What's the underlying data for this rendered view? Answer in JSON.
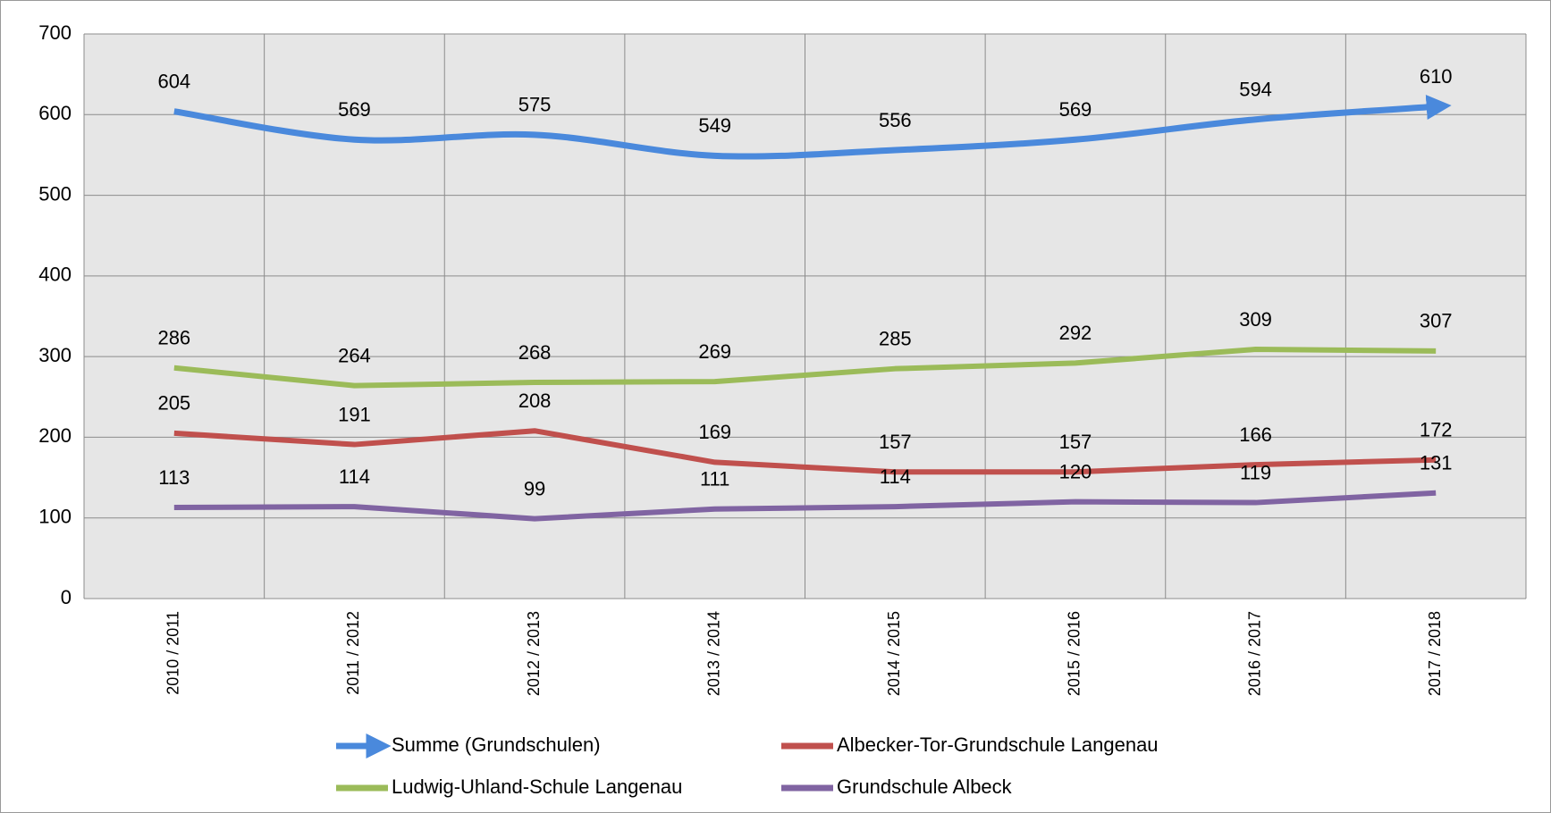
{
  "chart_data": {
    "type": "line",
    "categories": [
      "2010 / 2011",
      "2011 / 2012",
      "2012 / 2013",
      "2013 / 2014",
      "2014 / 2015",
      "2015 / 2016",
      "2016 / 2017",
      "2017 / 2018"
    ],
    "series": [
      {
        "name": "Summe (Grundschulen)",
        "color": "#4a89dc",
        "smooth": true,
        "arrow": true,
        "values": [
          604,
          569,
          575,
          549,
          556,
          569,
          594,
          610
        ]
      },
      {
        "name": "Albecker-Tor-Grundschule Langenau",
        "color": "#c0504d",
        "values": [
          205,
          191,
          208,
          169,
          157,
          157,
          166,
          172
        ]
      },
      {
        "name": "Ludwig-Uhland-Schule Langenau",
        "color": "#9bbb59",
        "values": [
          286,
          264,
          268,
          269,
          285,
          292,
          309,
          307
        ]
      },
      {
        "name": "Grundschule Albeck",
        "color": "#8064a2",
        "values": [
          113,
          114,
          99,
          111,
          114,
          120,
          119,
          131
        ]
      }
    ],
    "ylim": [
      0,
      700
    ],
    "yticks": [
      0,
      100,
      200,
      300,
      400,
      500,
      600,
      700
    ],
    "grid": true,
    "legend": "bottom"
  }
}
